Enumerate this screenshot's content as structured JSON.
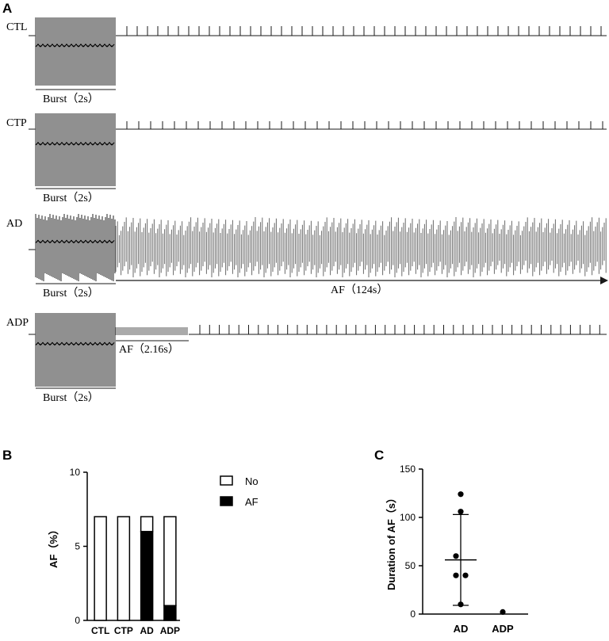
{
  "panel_a": {
    "letter": "A",
    "traces": [
      {
        "label": "CTL",
        "burst_label": "Burst（2s）"
      },
      {
        "label": "CTP",
        "burst_label": "Burst（2s）"
      },
      {
        "label": "AD",
        "burst_label": "Burst（2s）",
        "af_label": "AF（124s）"
      },
      {
        "label": "ADP",
        "burst_label": "Burst（2s）",
        "af_label": "AF（2.16s）"
      }
    ]
  },
  "panel_b": {
    "letter": "B"
  },
  "panel_c": {
    "letter": "C"
  },
  "colors": {
    "trace": "#1a1a1a",
    "burst": "#555555",
    "af_fill": "#000000",
    "no_fill": "#ffffff"
  },
  "chart_data": [
    {
      "type": "bar",
      "stacked": true,
      "categories": [
        "CTL",
        "CTP",
        "AD",
        "ADP"
      ],
      "series": [
        {
          "name": "AF",
          "values": [
            0,
            0,
            6,
            1
          ]
        },
        {
          "name": "No",
          "values": [
            7,
            7,
            1,
            6
          ]
        }
      ],
      "ylabel": "AF（%）",
      "ylim": [
        0,
        10
      ],
      "yticks": [
        0,
        5,
        10
      ],
      "legend_position": "right"
    },
    {
      "type": "scatter",
      "categories": [
        "AD",
        "ADP"
      ],
      "points": [
        {
          "x": "AD",
          "y": 124
        },
        {
          "x": "AD",
          "y": 106
        },
        {
          "x": "AD",
          "y": 60
        },
        {
          "x": "AD",
          "y": 40
        },
        {
          "x": "AD",
          "y": 40
        },
        {
          "x": "AD",
          "y": 10
        },
        {
          "x": "ADP",
          "y": 2.16
        }
      ],
      "summary": {
        "AD": {
          "mean": 56,
          "sd_low": 9,
          "sd_high": 103
        }
      },
      "ylabel": "Duration of AF（s）",
      "ylim": [
        0,
        150
      ],
      "yticks": [
        0,
        50,
        100,
        150
      ]
    }
  ]
}
